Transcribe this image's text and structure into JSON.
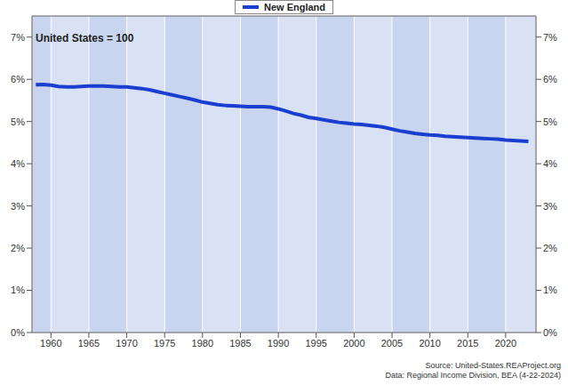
{
  "chart_data": {
    "type": "line",
    "annotation": "United States = 100",
    "source": [
      "Source: United-States.REAProject.org",
      "Data: Regional Income Division, BEA (4-22-2024)"
    ],
    "x": [
      1958,
      1959,
      1960,
      1961,
      1962,
      1963,
      1964,
      1965,
      1966,
      1967,
      1968,
      1969,
      1970,
      1971,
      1972,
      1973,
      1974,
      1975,
      1976,
      1977,
      1978,
      1979,
      1980,
      1981,
      1982,
      1983,
      1984,
      1985,
      1986,
      1987,
      1988,
      1989,
      1990,
      1991,
      1992,
      1993,
      1994,
      1995,
      1996,
      1997,
      1998,
      1999,
      2000,
      2001,
      2002,
      2003,
      2004,
      2005,
      2006,
      2007,
      2008,
      2009,
      2010,
      2011,
      2012,
      2013,
      2014,
      2015,
      2016,
      2017,
      2018,
      2019,
      2020,
      2021,
      2022,
      2023
    ],
    "series": [
      {
        "name": "New England",
        "color": "#1a3fd0",
        "values": [
          5.87,
          5.88,
          5.86,
          5.83,
          5.82,
          5.82,
          5.83,
          5.84,
          5.84,
          5.84,
          5.83,
          5.82,
          5.82,
          5.8,
          5.78,
          5.75,
          5.71,
          5.67,
          5.63,
          5.59,
          5.55,
          5.51,
          5.46,
          5.43,
          5.4,
          5.38,
          5.37,
          5.36,
          5.35,
          5.35,
          5.35,
          5.34,
          5.3,
          5.25,
          5.19,
          5.15,
          5.1,
          5.07,
          5.04,
          5.01,
          4.98,
          4.96,
          4.94,
          4.93,
          4.91,
          4.89,
          4.86,
          4.82,
          4.78,
          4.75,
          4.72,
          4.7,
          4.68,
          4.67,
          4.65,
          4.64,
          4.63,
          4.62,
          4.61,
          4.6,
          4.59,
          4.58,
          4.56,
          4.55,
          4.54,
          4.53
        ]
      }
    ],
    "xlim": [
      1957.5,
      2024
    ],
    "xticks": [
      1960,
      1965,
      1970,
      1975,
      1980,
      1985,
      1990,
      1995,
      2000,
      2005,
      2010,
      2015,
      2020
    ],
    "ylim": [
      0,
      7.5
    ],
    "yticks": [
      {
        "value": 0,
        "label": "0%"
      },
      {
        "value": 1,
        "label": "1%"
      },
      {
        "value": 2,
        "label": "2%"
      },
      {
        "value": 3,
        "label": "3%"
      },
      {
        "value": 4,
        "label": "4%"
      },
      {
        "value": 5,
        "label": "5%"
      },
      {
        "value": 6,
        "label": "6%"
      },
      {
        "value": 7,
        "label": "7%"
      }
    ],
    "grid": true,
    "legend": "top"
  }
}
